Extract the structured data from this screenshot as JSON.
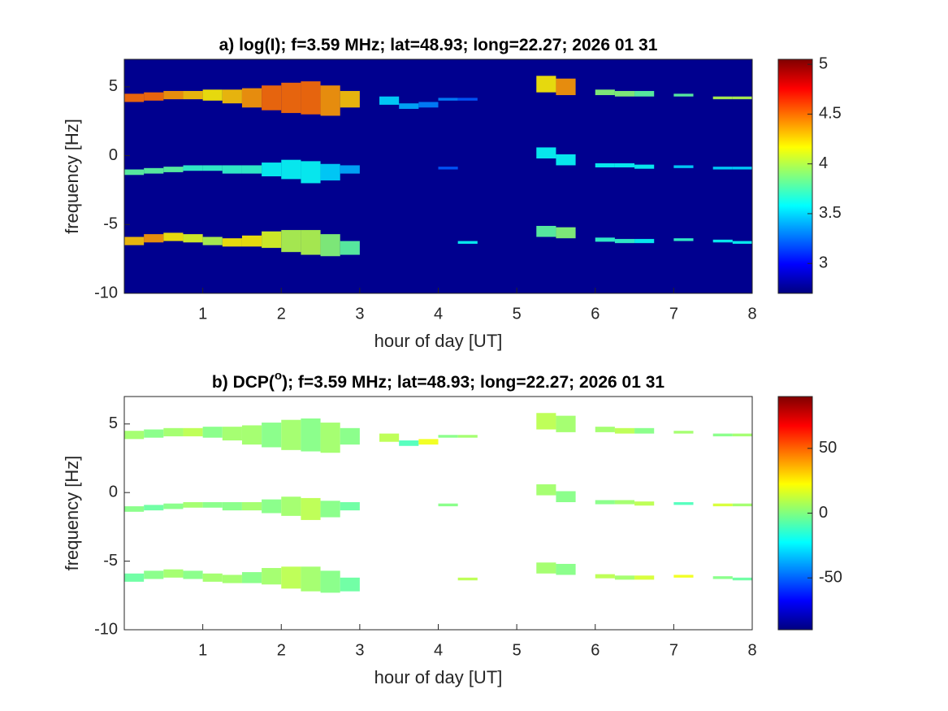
{
  "chart_data": [
    {
      "type": "heatmap",
      "title": [
        "a) log(I); f=3.59 MHz;  lat=48.93; long=22.27; 2026 01 31"
      ],
      "xlabel": "hour of day [UT]",
      "ylabel": "frequency [Hz]",
      "xlim": [
        0,
        8
      ],
      "xticks": [
        1,
        2,
        3,
        4,
        5,
        6,
        7,
        8
      ],
      "ylim": [
        -10,
        7
      ],
      "yticks": [
        -10,
        -5,
        0,
        5
      ],
      "clim": [
        2.7,
        5.05
      ],
      "cticks": [
        3,
        3.5,
        4,
        4.5,
        5
      ],
      "colormap": "jet",
      "background": "#00008f",
      "x": [
        0.125,
        0.375,
        0.625,
        0.875,
        1.125,
        1.375,
        1.625,
        1.875,
        2.125,
        2.375,
        2.625,
        2.875,
        3.125,
        3.375,
        3.625,
        3.875,
        4.125,
        4.375,
        4.625,
        4.875,
        5.125,
        5.375,
        5.625,
        5.875,
        6.125,
        6.375,
        6.625,
        6.875,
        7.125,
        7.375,
        7.625,
        7.875
      ],
      "traces": [
        {
          "y": [
            4.2,
            4.3,
            4.4,
            4.4,
            4.4,
            4.3,
            4.2,
            4.2,
            4.2,
            4.2,
            4.0,
            4.1,
            null,
            4.0,
            3.6,
            3.7,
            4.1,
            4.1,
            null,
            null,
            null,
            5.2,
            5.0,
            null,
            4.6,
            4.5,
            4.5,
            null,
            4.4,
            null,
            4.2,
            4.2
          ],
          "spread": [
            0.3,
            0.3,
            0.3,
            0.3,
            0.4,
            0.5,
            0.7,
            0.9,
            1.1,
            1.2,
            1.1,
            0.6,
            null,
            0.3,
            0.2,
            0.2,
            0.1,
            0.1,
            null,
            null,
            null,
            0.6,
            0.6,
            null,
            0.2,
            0.2,
            0.2,
            null,
            0.1,
            null,
            0.1,
            0.1
          ],
          "values": [
            4.5,
            4.5,
            4.4,
            4.3,
            4.2,
            4.3,
            4.4,
            4.5,
            4.5,
            4.5,
            4.4,
            4.3,
            null,
            3.5,
            3.4,
            3.3,
            3.3,
            3.2,
            null,
            null,
            null,
            4.2,
            4.4,
            null,
            3.9,
            3.9,
            3.8,
            null,
            3.8,
            null,
            4.0,
            4.0
          ]
        },
        {
          "y": [
            -1.2,
            -1.1,
            -1.0,
            -0.9,
            -0.9,
            -1.0,
            -1.0,
            -1.0,
            -1.0,
            -1.2,
            -1.2,
            -1.0,
            null,
            null,
            null,
            null,
            -0.9,
            null,
            null,
            null,
            null,
            0.2,
            -0.3,
            null,
            -0.7,
            -0.7,
            -0.8,
            null,
            -0.8,
            null,
            -0.9,
            -0.9
          ],
          "spread": [
            0.2,
            0.2,
            0.2,
            0.2,
            0.2,
            0.3,
            0.3,
            0.5,
            0.7,
            0.8,
            0.6,
            0.3,
            null,
            null,
            null,
            null,
            0.1,
            null,
            null,
            null,
            null,
            0.4,
            0.4,
            null,
            0.15,
            0.15,
            0.15,
            null,
            0.1,
            null,
            0.1,
            0.1
          ],
          "values": [
            3.8,
            3.8,
            3.8,
            3.7,
            3.7,
            3.7,
            3.7,
            3.6,
            3.6,
            3.6,
            3.5,
            3.4,
            null,
            null,
            null,
            null,
            3.2,
            null,
            null,
            null,
            null,
            3.6,
            3.6,
            null,
            3.6,
            3.6,
            3.6,
            null,
            3.5,
            null,
            3.5,
            3.5
          ]
        },
        {
          "y": [
            -6.2,
            -6.0,
            -5.9,
            -6.0,
            -6.2,
            -6.3,
            -6.2,
            -6.1,
            -6.2,
            -6.3,
            -6.5,
            -6.7,
            null,
            null,
            null,
            null,
            null,
            -6.3,
            null,
            null,
            null,
            -5.5,
            -5.6,
            null,
            -6.1,
            -6.2,
            -6.2,
            null,
            -6.1,
            null,
            -6.2,
            -6.3
          ],
          "spread": [
            0.3,
            0.3,
            0.3,
            0.3,
            0.3,
            0.3,
            0.4,
            0.6,
            0.8,
            0.9,
            0.8,
            0.5,
            null,
            null,
            null,
            null,
            null,
            0.1,
            null,
            null,
            null,
            0.4,
            0.4,
            null,
            0.15,
            0.15,
            0.15,
            null,
            0.1,
            null,
            0.1,
            0.1
          ],
          "values": [
            4.3,
            4.4,
            4.2,
            4.1,
            4.0,
            4.2,
            4.2,
            4.1,
            4.0,
            4.0,
            3.9,
            3.8,
            null,
            null,
            null,
            null,
            null,
            3.6,
            null,
            null,
            null,
            3.8,
            3.9,
            null,
            3.7,
            3.7,
            3.6,
            null,
            3.7,
            null,
            3.6,
            3.6
          ]
        }
      ]
    },
    {
      "type": "heatmap",
      "title": [
        "b) DCP(",
        "o",
        "); f=3.59 MHz;  lat=48.93; long=22.27; 2026 01 31"
      ],
      "xlabel": "hour of day [UT]",
      "ylabel": "frequency [Hz]",
      "xlim": [
        0,
        8
      ],
      "xticks": [
        1,
        2,
        3,
        4,
        5,
        6,
        7,
        8
      ],
      "ylim": [
        -10,
        7
      ],
      "yticks": [
        -10,
        -5,
        0,
        5
      ],
      "clim": [
        -90,
        90
      ],
      "cticks": [
        -50,
        0,
        50
      ],
      "colormap": "jet",
      "background": "#ffffff",
      "x": [
        0.125,
        0.375,
        0.625,
        0.875,
        1.125,
        1.375,
        1.625,
        1.875,
        2.125,
        2.375,
        2.625,
        2.875,
        3.125,
        3.375,
        3.625,
        3.875,
        4.125,
        4.375,
        4.625,
        4.875,
        5.125,
        5.375,
        5.625,
        5.875,
        6.125,
        6.375,
        6.625,
        6.875,
        7.125,
        7.375,
        7.625,
        7.875
      ],
      "traces": [
        {
          "y": [
            4.2,
            4.3,
            4.4,
            4.4,
            4.4,
            4.3,
            4.2,
            4.2,
            4.2,
            4.2,
            4.0,
            4.1,
            null,
            4.0,
            3.6,
            3.7,
            4.1,
            4.1,
            null,
            null,
            null,
            5.2,
            5.0,
            null,
            4.6,
            4.5,
            4.5,
            null,
            4.4,
            null,
            4.2,
            4.2
          ],
          "spread": [
            0.3,
            0.3,
            0.3,
            0.3,
            0.4,
            0.5,
            0.7,
            0.9,
            1.1,
            1.2,
            1.1,
            0.6,
            null,
            0.3,
            0.2,
            0.2,
            0.1,
            0.1,
            null,
            null,
            null,
            0.6,
            0.6,
            null,
            0.2,
            0.2,
            0.2,
            null,
            0.1,
            null,
            0.1,
            0.1
          ],
          "values": [
            5,
            0,
            5,
            10,
            0,
            5,
            5,
            0,
            5,
            0,
            5,
            0,
            null,
            10,
            -10,
            20,
            0,
            5,
            null,
            null,
            null,
            10,
            5,
            null,
            5,
            10,
            0,
            null,
            5,
            null,
            0,
            5
          ]
        },
        {
          "y": [
            -1.2,
            -1.1,
            -1.0,
            -0.9,
            -0.9,
            -1.0,
            -1.0,
            -1.0,
            -1.0,
            -1.2,
            -1.2,
            -1.0,
            null,
            null,
            null,
            null,
            -0.9,
            null,
            null,
            null,
            null,
            0.2,
            -0.3,
            null,
            -0.7,
            -0.7,
            -0.8,
            null,
            -0.8,
            null,
            -0.9,
            -0.9
          ],
          "spread": [
            0.2,
            0.2,
            0.2,
            0.2,
            0.2,
            0.3,
            0.3,
            0.5,
            0.7,
            0.8,
            0.6,
            0.3,
            null,
            null,
            null,
            null,
            0.1,
            null,
            null,
            null,
            null,
            0.4,
            0.4,
            null,
            0.15,
            0.15,
            0.15,
            null,
            0.1,
            null,
            0.1,
            0.1
          ],
          "values": [
            0,
            -5,
            0,
            5,
            0,
            0,
            5,
            0,
            5,
            10,
            0,
            -5,
            null,
            null,
            null,
            null,
            0,
            null,
            null,
            null,
            null,
            5,
            0,
            null,
            0,
            5,
            10,
            null,
            -10,
            null,
            15,
            5
          ]
        },
        {
          "y": [
            -6.2,
            -6.0,
            -5.9,
            -6.0,
            -6.2,
            -6.3,
            -6.2,
            -6.1,
            -6.2,
            -6.3,
            -6.5,
            -6.7,
            null,
            null,
            null,
            null,
            null,
            -6.3,
            null,
            null,
            null,
            -5.5,
            -5.6,
            null,
            -6.1,
            -6.2,
            -6.2,
            null,
            -6.1,
            null,
            -6.2,
            -6.3
          ],
          "spread": [
            0.3,
            0.3,
            0.3,
            0.3,
            0.3,
            0.3,
            0.4,
            0.6,
            0.8,
            0.9,
            0.8,
            0.5,
            null,
            null,
            null,
            null,
            null,
            0.1,
            null,
            null,
            null,
            0.4,
            0.4,
            null,
            0.15,
            0.15,
            0.15,
            null,
            0.1,
            null,
            0.1,
            0.1
          ],
          "values": [
            -5,
            0,
            5,
            0,
            5,
            5,
            0,
            5,
            10,
            5,
            0,
            -5,
            null,
            null,
            null,
            null,
            null,
            10,
            null,
            null,
            null,
            5,
            0,
            null,
            10,
            5,
            15,
            null,
            20,
            null,
            0,
            -5
          ]
        }
      ]
    }
  ]
}
